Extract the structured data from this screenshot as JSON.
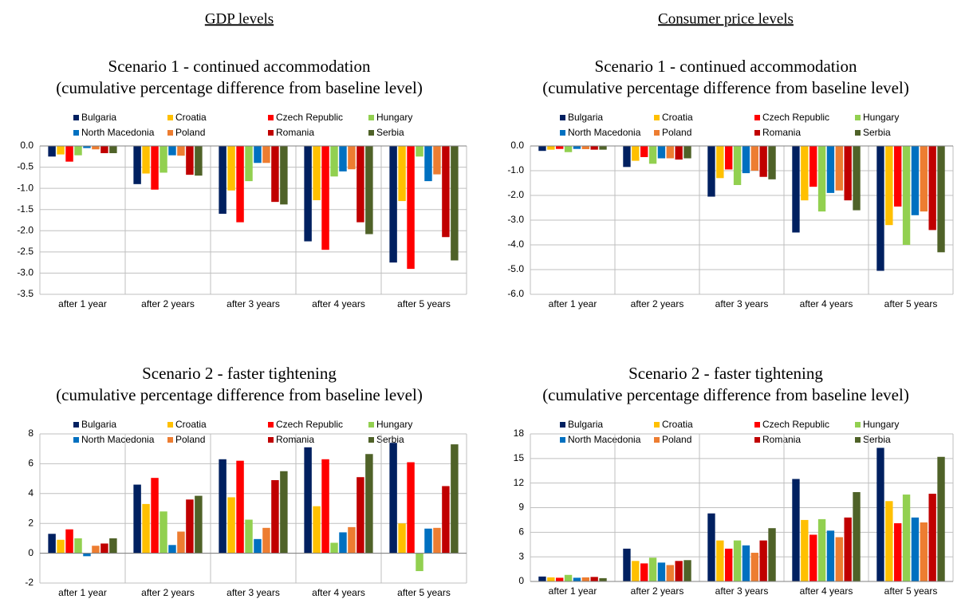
{
  "headings": [
    "GDP levels",
    "Consumer price levels"
  ],
  "chart_data": [
    {
      "type": "bar",
      "title": "Scenario 1 - continued accommodation",
      "subtitle": "(cumulative percentage difference from baseline level)",
      "categories": [
        "after 1 year",
        "after 2 years",
        "after 3 years",
        "after 4 years",
        "after 5 years"
      ],
      "series": [
        {
          "name": "Bulgaria",
          "color": "#002060",
          "values": [
            -0.25,
            -0.9,
            -1.6,
            -2.25,
            -2.75
          ]
        },
        {
          "name": "Croatia",
          "color": "#FFC000",
          "values": [
            -0.2,
            -0.65,
            -1.05,
            -1.28,
            -1.3
          ]
        },
        {
          "name": "Czech Republic",
          "color": "#FF0000",
          "values": [
            -0.37,
            -1.03,
            -1.8,
            -2.45,
            -2.9
          ]
        },
        {
          "name": "Hungary",
          "color": "#92D050",
          "values": [
            -0.22,
            -0.63,
            -0.83,
            -0.72,
            -0.25
          ]
        },
        {
          "name": "North Macedonia",
          "color": "#0070C0",
          "values": [
            -0.05,
            -0.22,
            -0.4,
            -0.6,
            -0.83
          ]
        },
        {
          "name": "Poland",
          "color": "#ED7D31",
          "values": [
            -0.08,
            -0.23,
            -0.4,
            -0.55,
            -0.67
          ]
        },
        {
          "name": "Romania",
          "color": "#C00000",
          "values": [
            -0.17,
            -0.68,
            -1.32,
            -1.8,
            -2.15
          ]
        },
        {
          "name": "Serbia",
          "color": "#4F6228",
          "values": [
            -0.17,
            -0.7,
            -1.38,
            -2.08,
            -2.7
          ]
        }
      ],
      "ylim": [
        -3.5,
        0
      ],
      "yticks": [
        {
          "value": 0,
          "label": "0.0"
        },
        -0.5,
        {
          "value": -1,
          "label": "-1.0"
        },
        -1.5,
        {
          "value": -2,
          "label": "-2.0"
        },
        -2.5,
        {
          "value": -3,
          "label": "-3.0"
        },
        -3.5
      ],
      "grid": true,
      "legend": "top"
    },
    {
      "type": "bar",
      "title": "Scenario 1 - continued accommodation",
      "subtitle": "(cumulative percentage difference from baseline level)",
      "categories": [
        "after 1 year",
        "after 2 years",
        "after 3 years",
        "after 4 years",
        "after 5 years"
      ],
      "series": [
        {
          "name": "Bulgaria",
          "color": "#002060",
          "values": [
            -0.2,
            -0.85,
            -2.05,
            -3.5,
            -5.05
          ]
        },
        {
          "name": "Croatia",
          "color": "#FFC000",
          "values": [
            -0.15,
            -0.6,
            -1.3,
            -2.2,
            -3.2
          ]
        },
        {
          "name": "Czech Republic",
          "color": "#FF0000",
          "values": [
            -0.12,
            -0.45,
            -0.95,
            -1.65,
            -2.45
          ]
        },
        {
          "name": "Hungary",
          "color": "#92D050",
          "values": [
            -0.25,
            -0.72,
            -1.58,
            -2.65,
            -4.0
          ]
        },
        {
          "name": "North Macedonia",
          "color": "#0070C0",
          "values": [
            -0.12,
            -0.5,
            -1.1,
            -1.9,
            -2.8
          ]
        },
        {
          "name": "Poland",
          "color": "#ED7D31",
          "values": [
            -0.13,
            -0.5,
            -1.0,
            -1.8,
            -2.65
          ]
        },
        {
          "name": "Romania",
          "color": "#C00000",
          "values": [
            -0.15,
            -0.55,
            -1.25,
            -2.2,
            -3.4
          ]
        },
        {
          "name": "Serbia",
          "color": "#4F6228",
          "values": [
            -0.15,
            -0.5,
            -1.35,
            -2.6,
            -4.3
          ]
        }
      ],
      "ylim": [
        -6,
        0
      ],
      "yticks": [
        {
          "value": 0,
          "label": "0.0"
        },
        {
          "value": -1,
          "label": "-1.0"
        },
        {
          "value": -2,
          "label": "-2.0"
        },
        {
          "value": -3,
          "label": "-3.0"
        },
        {
          "value": -4,
          "label": "-4.0"
        },
        {
          "value": -5,
          "label": "-5.0"
        },
        {
          "value": -6,
          "label": "-6.0"
        }
      ],
      "grid": true,
      "legend": "top"
    },
    {
      "type": "bar",
      "title": "Scenario 2 - faster tightening",
      "subtitle": "(cumulative percentage difference from baseline level)",
      "categories": [
        "after 1 year",
        "after 2 years",
        "after 3 years",
        "after 4 years",
        "after 5 years"
      ],
      "series": [
        {
          "name": "Bulgaria",
          "color": "#002060",
          "values": [
            1.3,
            4.6,
            6.3,
            7.1,
            7.4
          ]
        },
        {
          "name": "Croatia",
          "color": "#FFC000",
          "values": [
            0.9,
            3.3,
            3.75,
            3.15,
            2.0
          ]
        },
        {
          "name": "Czech Republic",
          "color": "#FF0000",
          "values": [
            1.6,
            5.05,
            6.2,
            6.3,
            6.1
          ]
        },
        {
          "name": "Hungary",
          "color": "#92D050",
          "values": [
            1.0,
            2.8,
            2.25,
            0.7,
            -1.2
          ]
        },
        {
          "name": "North Macedonia",
          "color": "#0070C0",
          "values": [
            -0.2,
            0.55,
            0.95,
            1.4,
            1.65
          ]
        },
        {
          "name": "Poland",
          "color": "#ED7D31",
          "values": [
            0.5,
            1.45,
            1.7,
            1.75,
            1.7
          ]
        },
        {
          "name": "Romania",
          "color": "#C00000",
          "values": [
            0.65,
            3.6,
            4.9,
            5.1,
            4.5
          ]
        },
        {
          "name": "Serbia",
          "color": "#4F6228",
          "values": [
            1.0,
            3.85,
            5.5,
            6.65,
            7.3
          ]
        }
      ],
      "ylim": [
        -2,
        8
      ],
      "yticks": [
        8,
        6,
        4,
        2,
        0,
        -2
      ],
      "grid": true,
      "legend": "top"
    },
    {
      "type": "bar",
      "title": "Scenario 2 - faster tightening",
      "subtitle": "(cumulative percentage difference from baseline level)",
      "categories": [
        "after 1 year",
        "after 2 years",
        "after 3 years",
        "after 4 years",
        "after 5 years"
      ],
      "series": [
        {
          "name": "Bulgaria",
          "color": "#002060",
          "values": [
            0.6,
            4.0,
            8.3,
            12.5,
            16.3
          ]
        },
        {
          "name": "Croatia",
          "color": "#FFC000",
          "values": [
            0.5,
            2.5,
            5.0,
            7.5,
            9.8
          ]
        },
        {
          "name": "Czech Republic",
          "color": "#FF0000",
          "values": [
            0.45,
            2.2,
            4.0,
            5.7,
            7.1
          ]
        },
        {
          "name": "Hungary",
          "color": "#92D050",
          "values": [
            0.8,
            2.9,
            5.0,
            7.6,
            10.6
          ]
        },
        {
          "name": "North Macedonia",
          "color": "#0070C0",
          "values": [
            0.45,
            2.3,
            4.4,
            6.2,
            7.8
          ]
        },
        {
          "name": "Poland",
          "color": "#ED7D31",
          "values": [
            0.5,
            2.0,
            3.5,
            5.4,
            7.2
          ]
        },
        {
          "name": "Romania",
          "color": "#C00000",
          "values": [
            0.55,
            2.5,
            5.0,
            7.8,
            10.7
          ]
        },
        {
          "name": "Serbia",
          "color": "#4F6228",
          "values": [
            0.4,
            2.6,
            6.5,
            10.9,
            15.2
          ]
        }
      ],
      "ylim": [
        0,
        18
      ],
      "yticks": [
        18,
        15,
        12,
        9,
        6,
        3,
        0
      ],
      "grid": true,
      "legend": "top"
    }
  ]
}
